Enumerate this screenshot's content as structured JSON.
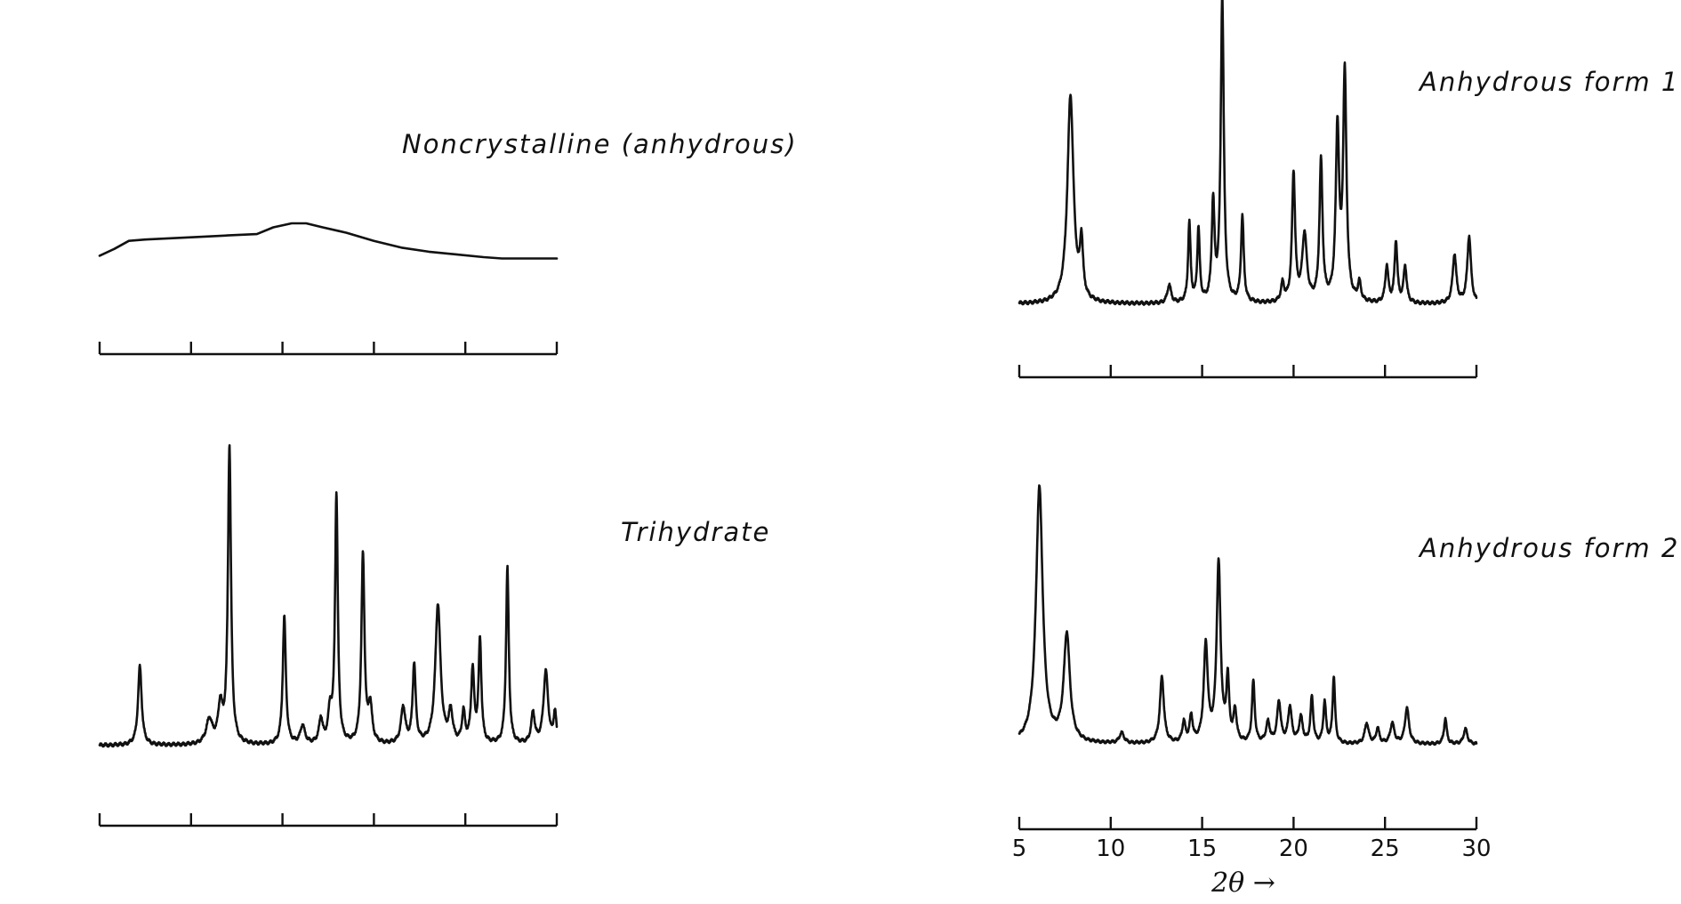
{
  "chart_data": [
    {
      "type": "line",
      "title": "Noncrystalline (anhydrous)",
      "xlim": [
        5,
        30
      ],
      "ylim": [
        0,
        100
      ],
      "ticks": [
        5,
        10,
        15,
        20,
        25,
        30
      ],
      "tick_labels_shown": false,
      "series": [
        {
          "x": [
            5,
            5.8,
            6.6,
            7.5,
            9,
            10.5,
            12,
            13.6,
            14.5,
            15.5,
            16.3,
            17.2,
            18.5,
            20,
            21.5,
            23,
            24.5,
            26,
            27,
            28.5,
            30
          ],
          "y": [
            3,
            8,
            14,
            15,
            16,
            17,
            18,
            19,
            24,
            27,
            27,
            24,
            20,
            14,
            9,
            6,
            4,
            2,
            1,
            1,
            1
          ]
        }
      ]
    },
    {
      "type": "line",
      "title": "Trihydrate",
      "xlim": [
        5,
        30
      ],
      "ylim": [
        0,
        100
      ],
      "ticks": [
        5,
        10,
        15,
        20,
        25,
        30
      ],
      "tick_labels_shown": false,
      "peaks": [
        {
          "x": 7.2,
          "h": 26,
          "w": 0.12
        },
        {
          "x": 11.0,
          "h": 8,
          "w": 0.2
        },
        {
          "x": 11.6,
          "h": 12,
          "w": 0.14
        },
        {
          "x": 12.1,
          "h": 98,
          "w": 0.1
        },
        {
          "x": 15.1,
          "h": 42,
          "w": 0.1
        },
        {
          "x": 16.1,
          "h": 6,
          "w": 0.15
        },
        {
          "x": 17.1,
          "h": 8,
          "w": 0.12
        },
        {
          "x": 17.6,
          "h": 10,
          "w": 0.12
        },
        {
          "x": 17.95,
          "h": 82,
          "w": 0.09
        },
        {
          "x": 19.4,
          "h": 62,
          "w": 0.1
        },
        {
          "x": 19.8,
          "h": 12,
          "w": 0.12
        },
        {
          "x": 21.6,
          "h": 12,
          "w": 0.14
        },
        {
          "x": 22.2,
          "h": 26,
          "w": 0.1
        },
        {
          "x": 23.5,
          "h": 46,
          "w": 0.17
        },
        {
          "x": 24.2,
          "h": 10,
          "w": 0.13
        },
        {
          "x": 24.9,
          "h": 10,
          "w": 0.1
        },
        {
          "x": 25.4,
          "h": 24,
          "w": 0.1
        },
        {
          "x": 25.8,
          "h": 34,
          "w": 0.09
        },
        {
          "x": 27.3,
          "h": 58,
          "w": 0.09
        },
        {
          "x": 28.7,
          "h": 10,
          "w": 0.12
        },
        {
          "x": 29.4,
          "h": 24,
          "w": 0.15
        },
        {
          "x": 29.9,
          "h": 10,
          "w": 0.09
        }
      ]
    },
    {
      "type": "line",
      "title": "Anhydrous form 1",
      "xlim": [
        5,
        30
      ],
      "ylim": [
        0,
        100
      ],
      "ticks": [
        5,
        10,
        15,
        20,
        25,
        30
      ],
      "tick_labels_shown": false,
      "peaks": [
        {
          "x": 7.8,
          "h": 68,
          "w": 0.2
        },
        {
          "x": 8.4,
          "h": 18,
          "w": 0.1
        },
        {
          "x": 13.2,
          "h": 6,
          "w": 0.12
        },
        {
          "x": 14.3,
          "h": 26,
          "w": 0.08
        },
        {
          "x": 14.8,
          "h": 24,
          "w": 0.08
        },
        {
          "x": 15.6,
          "h": 32,
          "w": 0.09
        },
        {
          "x": 16.1,
          "h": 100,
          "w": 0.1
        },
        {
          "x": 17.2,
          "h": 28,
          "w": 0.09
        },
        {
          "x": 19.4,
          "h": 6,
          "w": 0.1
        },
        {
          "x": 20.0,
          "h": 42,
          "w": 0.1
        },
        {
          "x": 20.6,
          "h": 22,
          "w": 0.15
        },
        {
          "x": 21.5,
          "h": 46,
          "w": 0.1
        },
        {
          "x": 22.4,
          "h": 56,
          "w": 0.11
        },
        {
          "x": 22.8,
          "h": 74,
          "w": 0.11
        },
        {
          "x": 23.6,
          "h": 6,
          "w": 0.1
        },
        {
          "x": 25.1,
          "h": 12,
          "w": 0.1
        },
        {
          "x": 25.6,
          "h": 20,
          "w": 0.09
        },
        {
          "x": 26.1,
          "h": 12,
          "w": 0.1
        },
        {
          "x": 28.8,
          "h": 16,
          "w": 0.12
        },
        {
          "x": 29.6,
          "h": 22,
          "w": 0.12
        }
      ]
    },
    {
      "type": "line",
      "title": "Anhydrous form 2",
      "xlim": [
        5,
        30
      ],
      "ylim": [
        0,
        100
      ],
      "ticks": [
        5,
        10,
        15,
        20,
        25,
        30
      ],
      "tick_labels_shown": true,
      "xlabel": "2θ →",
      "peaks": [
        {
          "x": 6.1,
          "h": 100,
          "w": 0.22
        },
        {
          "x": 7.6,
          "h": 42,
          "w": 0.2
        },
        {
          "x": 10.6,
          "h": 4,
          "w": 0.15
        },
        {
          "x": 12.8,
          "h": 26,
          "w": 0.13
        },
        {
          "x": 14.0,
          "h": 8,
          "w": 0.1
        },
        {
          "x": 14.4,
          "h": 10,
          "w": 0.1
        },
        {
          "x": 15.2,
          "h": 38,
          "w": 0.13
        },
        {
          "x": 15.9,
          "h": 70,
          "w": 0.13
        },
        {
          "x": 16.4,
          "h": 24,
          "w": 0.09
        },
        {
          "x": 16.8,
          "h": 12,
          "w": 0.1
        },
        {
          "x": 17.8,
          "h": 24,
          "w": 0.09
        },
        {
          "x": 18.6,
          "h": 8,
          "w": 0.12
        },
        {
          "x": 19.2,
          "h": 16,
          "w": 0.12
        },
        {
          "x": 19.8,
          "h": 14,
          "w": 0.12
        },
        {
          "x": 20.4,
          "h": 10,
          "w": 0.12
        },
        {
          "x": 21.0,
          "h": 18,
          "w": 0.09
        },
        {
          "x": 21.7,
          "h": 16,
          "w": 0.09
        },
        {
          "x": 22.2,
          "h": 26,
          "w": 0.08
        },
        {
          "x": 24.0,
          "h": 8,
          "w": 0.13
        },
        {
          "x": 24.6,
          "h": 6,
          "w": 0.1
        },
        {
          "x": 25.4,
          "h": 8,
          "w": 0.13
        },
        {
          "x": 26.2,
          "h": 14,
          "w": 0.13
        },
        {
          "x": 28.3,
          "h": 10,
          "w": 0.09
        },
        {
          "x": 29.4,
          "h": 6,
          "w": 0.12
        }
      ]
    }
  ]
}
